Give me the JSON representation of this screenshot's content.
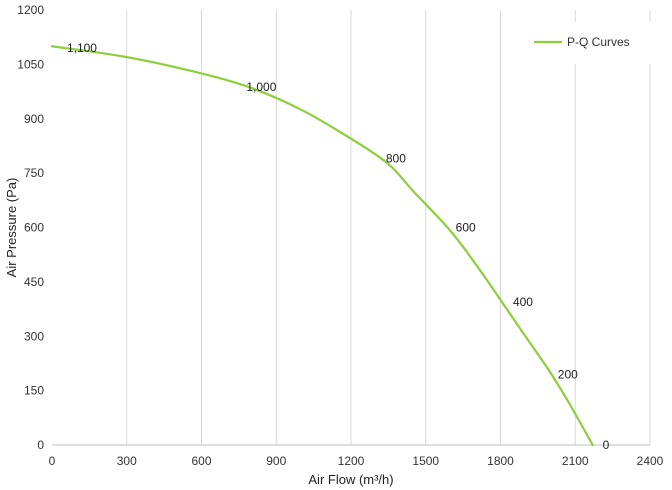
{
  "chart_data": {
    "type": "line",
    "title": "",
    "xlabel": "Air Flow  (m³/h)",
    "ylabel": "Air Pressure  (Pa)",
    "xlim": [
      0,
      2400
    ],
    "ylim": [
      0,
      1200
    ],
    "xticks": [
      0,
      300,
      600,
      900,
      1200,
      1500,
      1800,
      2100,
      2400
    ],
    "yticks": [
      0,
      150,
      300,
      450,
      600,
      750,
      900,
      1050,
      1200
    ],
    "xtick_labels": [
      "0",
      "300",
      "600",
      "900",
      "1200",
      "1500",
      "1800",
      "2100",
      "2400"
    ],
    "ytick_labels": [
      "0",
      "150",
      "300",
      "450",
      "600",
      "750",
      "900",
      "1050",
      "1200"
    ],
    "grid": "vertical",
    "legend": {
      "position": "top-right"
    },
    "series": [
      {
        "name": "P-Q Curves",
        "color": "#8ccf3a",
        "points": [
          {
            "x": 0,
            "y": 1100
          },
          {
            "x": 300,
            "y": 1070
          },
          {
            "x": 600,
            "y": 1025
          },
          {
            "x": 800,
            "y": 985
          },
          {
            "x": 1000,
            "y": 925
          },
          {
            "x": 1200,
            "y": 845
          },
          {
            "x": 1350,
            "y": 775
          },
          {
            "x": 1450,
            "y": 700
          },
          {
            "x": 1600,
            "y": 590
          },
          {
            "x": 1720,
            "y": 480
          },
          {
            "x": 1820,
            "y": 380
          },
          {
            "x": 1900,
            "y": 300
          },
          {
            "x": 2000,
            "y": 200
          },
          {
            "x": 2080,
            "y": 110
          },
          {
            "x": 2170,
            "y": 0
          }
        ]
      }
    ],
    "annotations": [
      {
        "text": "1,100",
        "x": 60,
        "y": 1095
      },
      {
        "text": "1,000",
        "x": 780,
        "y": 987
      },
      {
        "text": "800",
        "x": 1340,
        "y": 790
      },
      {
        "text": "600",
        "x": 1620,
        "y": 600
      },
      {
        "text": "400",
        "x": 1850,
        "y": 395
      },
      {
        "text": "200",
        "x": 2030,
        "y": 195
      },
      {
        "text": "0",
        "x": 2210,
        "y": 0
      }
    ]
  }
}
